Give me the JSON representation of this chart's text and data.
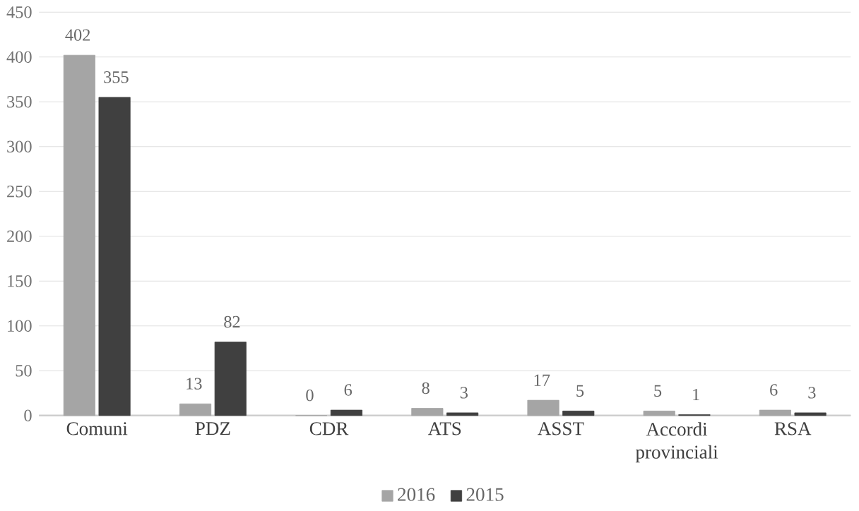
{
  "chart_data": {
    "type": "bar",
    "categories": [
      "Comuni",
      "PDZ",
      "CDR",
      "ATS",
      "ASST",
      "Accordi provinciali",
      "RSA"
    ],
    "series": [
      {
        "name": "2016",
        "color": "#a5a5a5",
        "values": [
          402,
          13,
          0,
          8,
          17,
          5,
          6
        ]
      },
      {
        "name": "2015",
        "color": "#404040",
        "values": [
          355,
          82,
          6,
          3,
          5,
          1,
          3
        ]
      }
    ],
    "ylim": [
      0,
      450
    ],
    "yticks": [
      0,
      50,
      100,
      150,
      200,
      250,
      300,
      350,
      400,
      450
    ],
    "grid": "y",
    "legend": "bottom",
    "data_labels": true
  }
}
